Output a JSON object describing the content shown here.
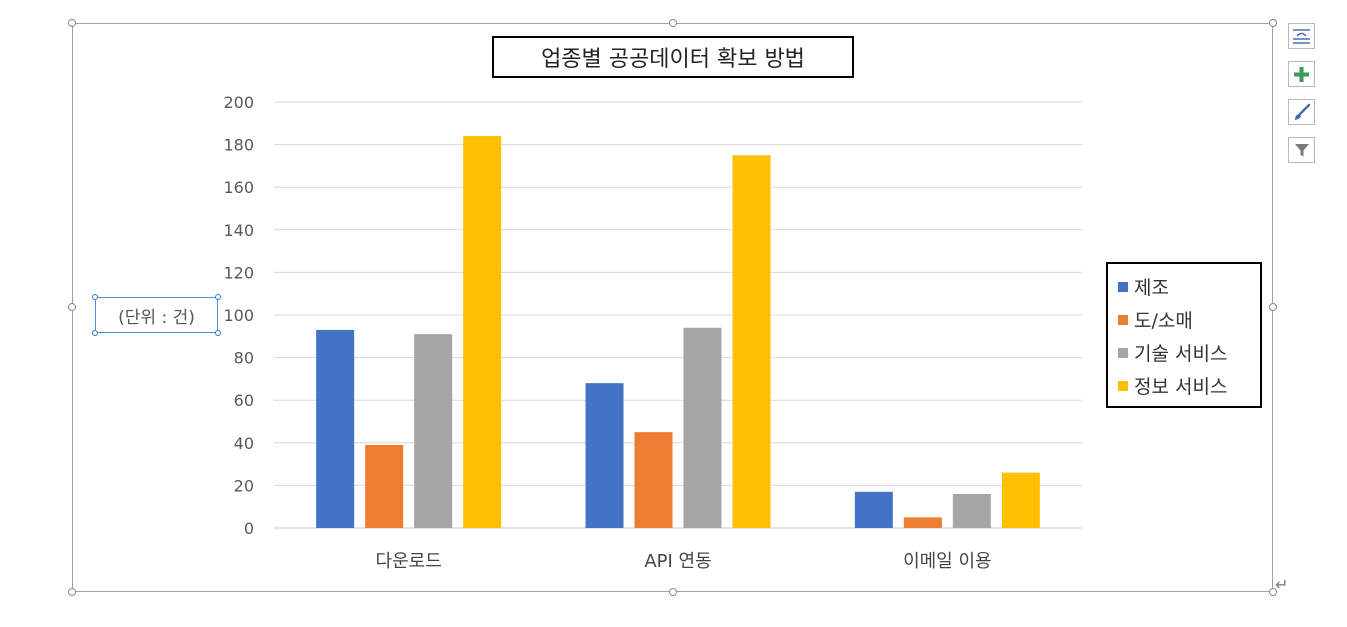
{
  "chart_data": {
    "type": "bar",
    "title": "업종별 공공데이터 확보 방법",
    "unit_label": "(단위 : 건)",
    "categories": [
      "다운로드",
      "API 연동",
      "이메일 이용"
    ],
    "series": [
      {
        "name": "제조",
        "color": "#4472C4",
        "values": [
          93,
          68,
          17
        ]
      },
      {
        "name": "도/소매",
        "color": "#ED7D31",
        "values": [
          39,
          45,
          5
        ]
      },
      {
        "name": "기술 서비스",
        "color": "#A5A5A5",
        "values": [
          91,
          94,
          16
        ]
      },
      {
        "name": "정보 서비스",
        "color": "#FFC000",
        "values": [
          184,
          175,
          26
        ]
      }
    ],
    "ylim": [
      0,
      200
    ],
    "yticks": [
      "0",
      "20",
      "40",
      "60",
      "80",
      "100",
      "120",
      "140",
      "160",
      "180",
      "200"
    ],
    "grid": true,
    "legend_position": "right"
  },
  "tools": [
    {
      "icon": "chart-layout-icon"
    },
    {
      "icon": "chart-elements-plus-icon"
    },
    {
      "icon": "chart-styles-brush-icon"
    },
    {
      "icon": "chart-filter-icon"
    }
  ],
  "return_mark": "↵"
}
